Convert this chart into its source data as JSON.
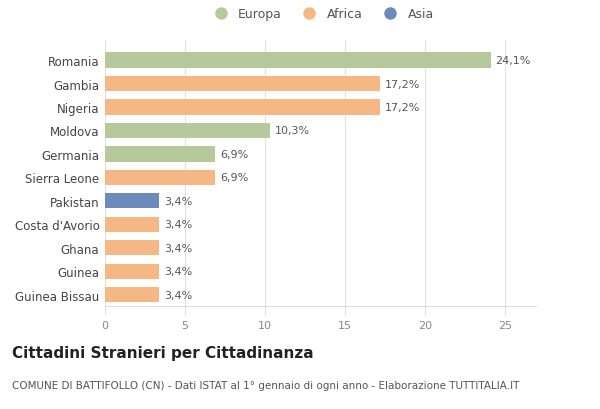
{
  "countries": [
    "Guinea Bissau",
    "Guinea",
    "Ghana",
    "Costa d'Avorio",
    "Pakistan",
    "Sierra Leone",
    "Germania",
    "Moldova",
    "Nigeria",
    "Gambia",
    "Romania"
  ],
  "values": [
    3.4,
    3.4,
    3.4,
    3.4,
    3.4,
    6.9,
    6.9,
    10.3,
    17.2,
    17.2,
    24.1
  ],
  "labels": [
    "3,4%",
    "3,4%",
    "3,4%",
    "3,4%",
    "3,4%",
    "6,9%",
    "6,9%",
    "10,3%",
    "17,2%",
    "17,2%",
    "24,1%"
  ],
  "continents": [
    "Africa",
    "Africa",
    "Africa",
    "Africa",
    "Asia",
    "Africa",
    "Europa",
    "Europa",
    "Africa",
    "Africa",
    "Europa"
  ],
  "colors": {
    "Europa": "#b5c99a",
    "Africa": "#f5b885",
    "Asia": "#6b8cba"
  },
  "title": "Cittadini Stranieri per Cittadinanza",
  "subtitle": "COMUNE DI BATTIFOLLO (CN) - Dati ISTAT al 1° gennaio di ogni anno - Elaborazione TUTTITALIA.IT",
  "xlim": [
    0,
    27
  ],
  "xticks": [
    0,
    5,
    10,
    15,
    20,
    25
  ],
  "background_color": "#ffffff",
  "grid_color": "#e0e0e0",
  "bar_height": 0.65,
  "label_fontsize": 8,
  "ylabel_fontsize": 8.5,
  "xtick_fontsize": 8,
  "title_fontsize": 11,
  "subtitle_fontsize": 7.5
}
